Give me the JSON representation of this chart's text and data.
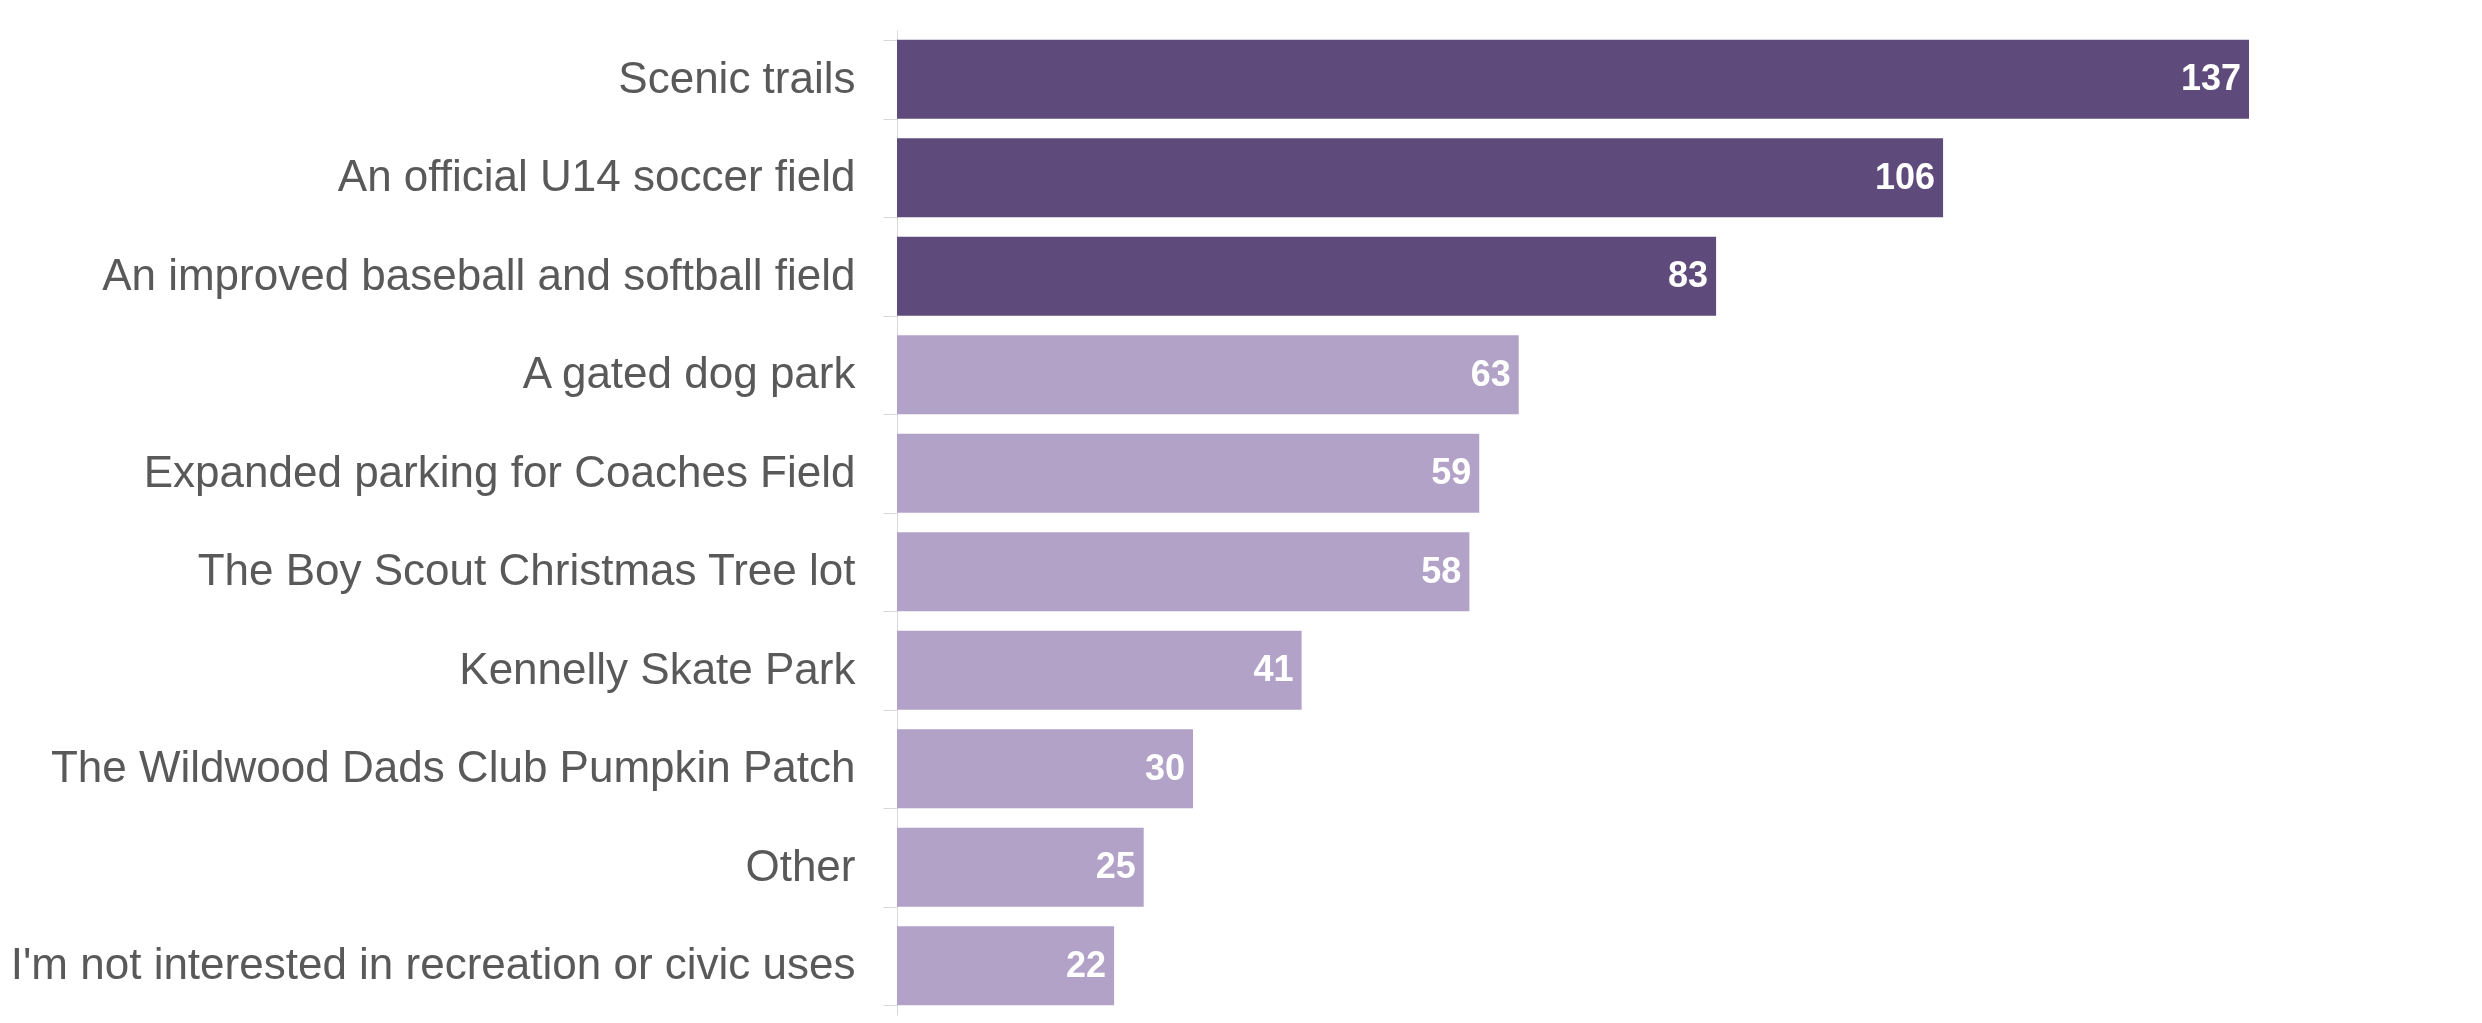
{
  "chart_data": {
    "type": "bar",
    "orientation": "horizontal",
    "data_labels": true,
    "categories": [
      "Scenic trails",
      "An official U14 soccer field",
      "An improved baseball and softball field",
      "A gated dog park",
      "Expanded parking for Coaches Field",
      "The Boy Scout Christmas Tree lot",
      "Kennelly Skate Park",
      "The Wildwood Dads Club Pumpkin Patch",
      "Other",
      "I'm not interested in recreation or civic uses"
    ],
    "values": [
      137,
      106,
      83,
      63,
      59,
      58,
      41,
      30,
      25,
      22
    ],
    "colors": [
      "#5f4b7b",
      "#5f4b7b",
      "#5f4b7b",
      "#b2a2c8",
      "#b2a2c8",
      "#b2a2c8",
      "#b2a2c8",
      "#b2a2c8",
      "#b2a2c8",
      "#b2a2c8"
    ],
    "grid": false
  }
}
